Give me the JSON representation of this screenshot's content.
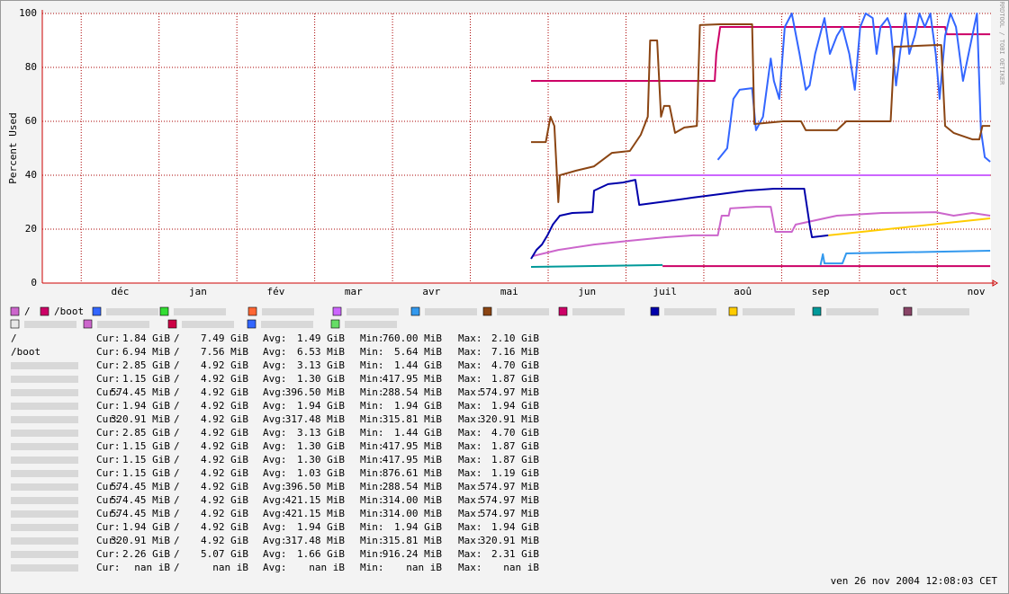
{
  "chart_data": {
    "type": "line",
    "y_label": "Percent Used",
    "side_text": "RRDTOOL / TOBI OETIKER",
    "timestamp": "ven 26 nov 2004 12:08:03 CET",
    "xlim": [
      -0.5,
      11.69
    ],
    "xticks": [
      {
        "value": 0,
        "label": "déc"
      },
      {
        "value": 1,
        "label": "jan"
      },
      {
        "value": 2,
        "label": "fév"
      },
      {
        "value": 3,
        "label": "mar"
      },
      {
        "value": 4,
        "label": "avr"
      },
      {
        "value": 5,
        "label": "mai"
      },
      {
        "value": 6,
        "label": "jun"
      },
      {
        "value": 7,
        "label": "juil"
      },
      {
        "value": 8,
        "label": "aoû"
      },
      {
        "value": 9,
        "label": "sep"
      },
      {
        "value": 10,
        "label": "oct"
      },
      {
        "value": 11,
        "label": "nov"
      }
    ],
    "ylim": [
      0,
      100
    ],
    "yticks": [
      0,
      20,
      40,
      60,
      80,
      100
    ],
    "grid": true,
    "series": [
      {
        "name": "/",
        "color": "#cc66cc",
        "x": [
          5.8,
          6.13,
          6.59,
          7.05,
          7.51,
          7.86,
          8.18,
          8.23,
          8.32,
          8.34,
          8.67,
          8.86,
          8.92,
          9.13,
          9.18,
          9.71,
          10.29,
          10.98,
          11.21,
          11.45,
          11.68
        ],
        "values": [
          10,
          12.3,
          14.3,
          15.7,
          17,
          17.7,
          17.7,
          25,
          25,
          27.7,
          28.3,
          28.3,
          19,
          19,
          21.7,
          25,
          26,
          26.3,
          25,
          26,
          25
        ]
      },
      {
        "name": "/boot",
        "color": "#cc0066",
        "x": [
          5.78,
          8.14,
          8.16,
          8.21,
          11.1,
          11.12,
          11.68
        ],
        "values": [
          75,
          75,
          85,
          95,
          95,
          92.3,
          92.3
        ]
      },
      {
        "name": null,
        "color": "#3366ff",
        "x": [
          8.18,
          8.3,
          8.38,
          8.46,
          8.62,
          8.67,
          8.76,
          8.86,
          8.9,
          8.97,
          9.04,
          9.13,
          9.23,
          9.31,
          9.36,
          9.43,
          9.55,
          9.62,
          9.71,
          9.78,
          9.87,
          9.94,
          10.01,
          10.08,
          10.17,
          10.22,
          10.27,
          10.36,
          10.4,
          10.47,
          10.52,
          10.59,
          10.64,
          10.71,
          10.77,
          10.84,
          10.91,
          10.98,
          11.03,
          11.1,
          11.17,
          11.24,
          11.33,
          11.45,
          11.51,
          11.56,
          11.61,
          11.68
        ],
        "values": [
          45.7,
          50,
          68.3,
          71.7,
          72.3,
          56.7,
          61.7,
          83.3,
          75,
          68.3,
          95,
          100,
          85,
          71.7,
          73.3,
          85,
          98.3,
          85,
          91.7,
          95,
          85,
          71.7,
          95,
          100,
          98.3,
          85,
          95,
          98.3,
          95,
          73.3,
          85,
          100,
          85,
          91.7,
          100,
          95,
          100,
          85,
          68.3,
          91.7,
          100,
          95,
          75,
          91.7,
          100,
          56.7,
          46.7,
          45
        ]
      },
      {
        "name": null,
        "color": "#33dd33",
        "x": [],
        "values": []
      },
      {
        "name": null,
        "color": "#ff6633",
        "x": [],
        "values": []
      },
      {
        "name": null,
        "color": "#cc66ff",
        "x": [
          7.05,
          11.68
        ],
        "values": [
          40,
          40
        ]
      },
      {
        "name": null,
        "color": "#3399ee",
        "x": [
          9.5,
          9.53,
          9.55,
          9.78,
          9.83,
          11.68
        ],
        "values": [
          6.7,
          10.7,
          7.3,
          7.3,
          11,
          12
        ]
      },
      {
        "name": null,
        "color": "#8b4513",
        "x": [
          5.78,
          5.97,
          6.03,
          6.08,
          6.13,
          6.15,
          6.36,
          6.59,
          6.82,
          7.05,
          7.19,
          7.28,
          7.31,
          7.4,
          7.45,
          7.49,
          7.56,
          7.63,
          7.75,
          7.91,
          7.95,
          8.21,
          8.62,
          8.65,
          9.02,
          9.25,
          9.31,
          9.71,
          9.83,
          10.4,
          10.45,
          10.52,
          10.98,
          11.05,
          11.1,
          11.21,
          11.45,
          11.54,
          11.58,
          11.68
        ],
        "values": [
          52.3,
          52.3,
          61.7,
          58.3,
          30,
          40,
          41.7,
          43.3,
          48.3,
          49,
          55,
          61.7,
          90,
          90,
          61.7,
          65.7,
          65.7,
          55.7,
          57.7,
          58.3,
          95.7,
          96,
          96,
          59,
          60,
          60,
          56.7,
          56.7,
          60,
          60,
          87.7,
          87.7,
          88.3,
          88.3,
          58.3,
          55.7,
          53.3,
          53.3,
          58.3,
          58.3
        ]
      },
      {
        "name": null,
        "color": "#cc0066",
        "x": [
          7.47,
          11.68
        ],
        "values": [
          6.3,
          6.3
        ]
      },
      {
        "name": null,
        "color": "#0000aa",
        "x": [
          5.78,
          5.85,
          5.92,
          5.99,
          6.06,
          6.15,
          6.31,
          6.57,
          6.59,
          6.77,
          6.96,
          7.12,
          7.17,
          7.51,
          7.86,
          8.21,
          8.55,
          8.9,
          9.29,
          9.36,
          9.39,
          9.6
        ],
        "values": [
          9,
          12.3,
          14.3,
          17.7,
          21.7,
          25,
          26,
          26.3,
          34.3,
          36.7,
          37.3,
          38.3,
          29,
          30.3,
          31.7,
          33,
          34.3,
          35,
          35,
          21.7,
          17,
          17.7
        ]
      },
      {
        "name": null,
        "color": "#ffcc00",
        "x": [
          9.6,
          11.68
        ],
        "values": [
          17.7,
          24
        ]
      },
      {
        "name": null,
        "color": "#009999",
        "x": [
          5.78,
          7.47
        ],
        "values": [
          6,
          6.7
        ]
      },
      {
        "name": null,
        "color": "#884466",
        "x": [],
        "values": []
      },
      {
        "name": null,
        "color": "#e8e8e8",
        "x": [],
        "values": []
      },
      {
        "name": null,
        "color": "#cc66cc",
        "x": [],
        "values": []
      },
      {
        "name": null,
        "color": "#cc0044",
        "x": [],
        "values": []
      },
      {
        "name": null,
        "color": "#3366ff",
        "x": [],
        "values": []
      },
      {
        "name": null,
        "color": "#66dd66",
        "x": [],
        "values": []
      }
    ]
  },
  "stats": {
    "labels": {
      "cur": "Cur:",
      "sep": "/",
      "avg": "Avg:",
      "min": "Min:",
      "max": "Max:"
    },
    "rows": [
      [
        "1.84 GiB",
        "7.49 GiB",
        "1.49 GiB",
        "760.00 MiB",
        "2.10 GiB"
      ],
      [
        "6.94 MiB",
        "7.56 MiB",
        "6.53 MiB",
        "5.64 MiB",
        "7.16 MiB"
      ],
      [
        "2.85 GiB",
        "4.92 GiB",
        "3.13 GiB",
        "1.44 GiB",
        "4.70 GiB"
      ],
      [
        "1.15 GiB",
        "4.92 GiB",
        "1.30 GiB",
        "417.95 MiB",
        "1.87 GiB"
      ],
      [
        "574.45 MiB",
        "4.92 GiB",
        "396.50 MiB",
        "288.54 MiB",
        "574.97 MiB"
      ],
      [
        "1.94 GiB",
        "4.92 GiB",
        "1.94 GiB",
        "1.94 GiB",
        "1.94 GiB"
      ],
      [
        "320.91 MiB",
        "4.92 GiB",
        "317.48 MiB",
        "315.81 MiB",
        "320.91 MiB"
      ],
      [
        "2.85 GiB",
        "4.92 GiB",
        "3.13 GiB",
        "1.44 GiB",
        "4.70 GiB"
      ],
      [
        "1.15 GiB",
        "4.92 GiB",
        "1.30 GiB",
        "417.95 MiB",
        "1.87 GiB"
      ],
      [
        "1.15 GiB",
        "4.92 GiB",
        "1.30 GiB",
        "417.95 MiB",
        "1.87 GiB"
      ],
      [
        "1.15 GiB",
        "4.92 GiB",
        "1.03 GiB",
        "876.61 MiB",
        "1.19 GiB"
      ],
      [
        "574.45 MiB",
        "4.92 GiB",
        "396.50 MiB",
        "288.54 MiB",
        "574.97 MiB"
      ],
      [
        "574.45 MiB",
        "4.92 GiB",
        "421.15 MiB",
        "314.00 MiB",
        "574.97 MiB"
      ],
      [
        "574.45 MiB",
        "4.92 GiB",
        "421.15 MiB",
        "314.00 MiB",
        "574.97 MiB"
      ],
      [
        "1.94 GiB",
        "4.92 GiB",
        "1.94 GiB",
        "1.94 GiB",
        "1.94 GiB"
      ],
      [
        "320.91 MiB",
        "4.92 GiB",
        "317.48 MiB",
        "315.81 MiB",
        "320.91 MiB"
      ],
      [
        "2.26 GiB",
        "5.07 GiB",
        "1.66 GiB",
        "916.24 MiB",
        "2.31 GiB"
      ],
      [
        "nan iB",
        "nan iB",
        "nan iB",
        "nan iB",
        "nan iB"
      ]
    ]
  }
}
